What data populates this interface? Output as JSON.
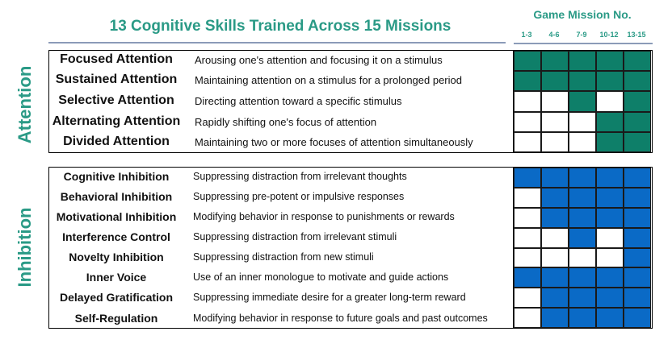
{
  "title": "13 Cognitive Skills Trained Across 15 Missions",
  "mission_header": {
    "title": "Game Mission No.",
    "columns": [
      "1-3",
      "4-6",
      "7-9",
      "10-12",
      "13-15"
    ]
  },
  "sections": [
    {
      "label": "Attention",
      "color": "#0e7f69",
      "rows": [
        {
          "skill": "Focused Attention",
          "description": "Arousing one's attention and focusing it on a stimulus",
          "missions": [
            1,
            1,
            1,
            1,
            1
          ]
        },
        {
          "skill": "Sustained Attention",
          "description": "Maintaining attention on a stimulus for a prolonged period",
          "missions": [
            1,
            1,
            1,
            1,
            1
          ]
        },
        {
          "skill": "Selective Attention",
          "description": "Directing attention toward a specific stimulus",
          "missions": [
            0,
            0,
            1,
            0,
            1
          ]
        },
        {
          "skill": "Alternating Attention",
          "description": "Rapidly shifting one's focus of attention",
          "missions": [
            0,
            0,
            0,
            1,
            1
          ]
        },
        {
          "skill": "Divided Attention",
          "description": "Maintaining two or more focuses of attention simultaneously",
          "missions": [
            0,
            0,
            0,
            1,
            1
          ]
        }
      ]
    },
    {
      "label": "Inhibition",
      "color": "#0a6ac6",
      "rows": [
        {
          "skill": "Cognitive Inhibition",
          "description": "Suppressing distraction from irrelevant thoughts",
          "missions": [
            1,
            1,
            1,
            1,
            1
          ]
        },
        {
          "skill": "Behavioral Inhibition",
          "description": "Suppressing pre-potent or impulsive responses",
          "missions": [
            0,
            1,
            1,
            1,
            1
          ]
        },
        {
          "skill": "Motivational Inhibition",
          "description": "Modifying behavior in response to punishments or rewards",
          "missions": [
            0,
            1,
            1,
            1,
            1
          ]
        },
        {
          "skill": "Interference Control",
          "description": "Suppressing distraction from irrelevant stimuli",
          "missions": [
            0,
            0,
            1,
            0,
            1
          ]
        },
        {
          "skill": "Novelty Inhibition",
          "description": "Suppressing distraction from new stimuli",
          "missions": [
            0,
            0,
            0,
            0,
            1
          ]
        },
        {
          "skill": "Inner Voice",
          "description": "Use of an inner monologue to motivate and guide actions",
          "missions": [
            1,
            1,
            1,
            1,
            1
          ]
        },
        {
          "skill": "Delayed Gratification",
          "description": "Suppressing immediate desire for a greater long-term reward",
          "missions": [
            0,
            1,
            1,
            1,
            1
          ]
        },
        {
          "skill": "Self-Regulation",
          "description": "Modifying behavior in response to future goals and past outcomes",
          "missions": [
            0,
            1,
            1,
            1,
            1
          ]
        }
      ]
    }
  ]
}
